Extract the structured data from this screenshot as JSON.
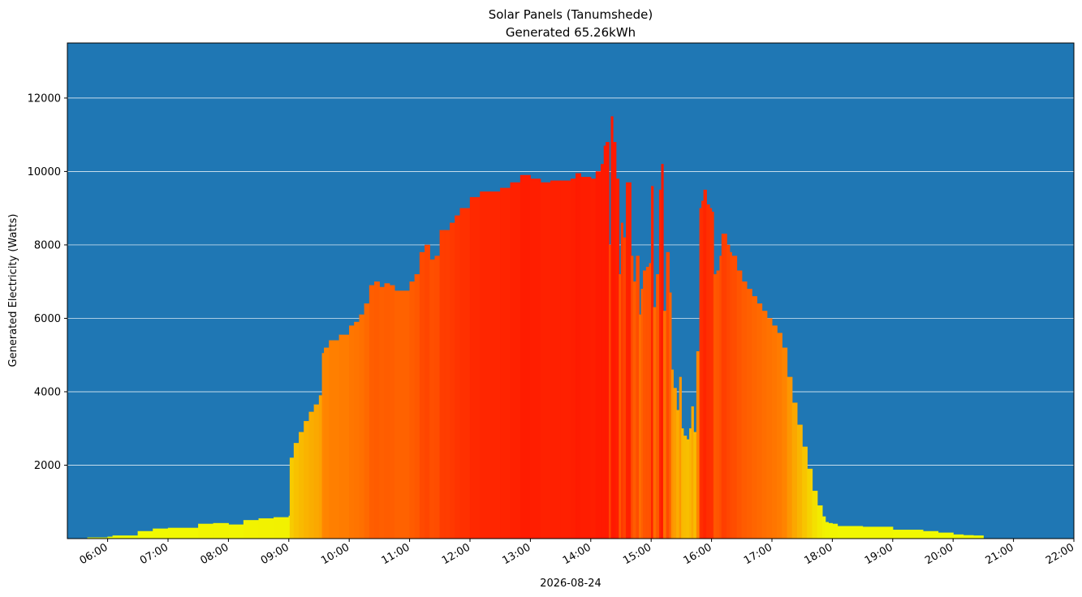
{
  "chart_data": {
    "type": "bar",
    "title": "Solar Panels (Tanumshede)",
    "subtitle": "Generated 65.26kWh",
    "xlabel": "2026-08-24",
    "ylabel": "Generated Electricity (Watts)",
    "ylim": [
      0,
      13500
    ],
    "xlim": [
      "05:20",
      "22:00"
    ],
    "yticks": [
      2000,
      4000,
      6000,
      8000,
      10000,
      12000
    ],
    "xticks": [
      "06:00",
      "07:00",
      "08:00",
      "09:00",
      "10:00",
      "11:00",
      "12:00",
      "13:00",
      "14:00",
      "15:00",
      "16:00",
      "17:00",
      "18:00",
      "19:00",
      "20:00",
      "21:00",
      "22:00"
    ],
    "grid": "horizontal",
    "colors": {
      "background": "#1f77b4",
      "low": "#f0ff00",
      "mid": "#ff8800",
      "high": "#ff1a00",
      "grid": "#ffffff"
    },
    "x": [
      "05:40",
      "06:00",
      "06:05",
      "06:30",
      "06:45",
      "07:00",
      "07:30",
      "07:45",
      "08:00",
      "08:15",
      "08:30",
      "08:45",
      "09:00",
      "09:01",
      "09:05",
      "09:10",
      "09:15",
      "09:20",
      "09:25",
      "09:30",
      "09:33",
      "09:35",
      "09:40",
      "09:50",
      "10:00",
      "10:05",
      "10:10",
      "10:15",
      "10:20",
      "10:25",
      "10:30",
      "10:35",
      "10:40",
      "10:45",
      "11:00",
      "11:05",
      "11:10",
      "11:15",
      "11:20",
      "11:25",
      "11:30",
      "11:35",
      "11:40",
      "11:45",
      "11:50",
      "12:00",
      "12:10",
      "12:20",
      "12:30",
      "12:40",
      "12:50",
      "13:00",
      "13:10",
      "13:20",
      "13:30",
      "13:40",
      "13:45",
      "13:50",
      "14:00",
      "14:05",
      "14:10",
      "14:13",
      "14:15",
      "14:18",
      "14:20",
      "14:22",
      "14:25",
      "14:28",
      "14:30",
      "14:32",
      "14:35",
      "14:38",
      "14:40",
      "14:42",
      "14:45",
      "14:48",
      "14:50",
      "14:52",
      "14:55",
      "14:58",
      "15:00",
      "15:02",
      "15:05",
      "15:08",
      "15:10",
      "15:12",
      "15:15",
      "15:18",
      "15:20",
      "15:22",
      "15:25",
      "15:28",
      "15:30",
      "15:32",
      "15:35",
      "15:38",
      "15:40",
      "15:42",
      "15:45",
      "15:48",
      "15:50",
      "15:52",
      "15:55",
      "15:58",
      "16:00",
      "16:02",
      "16:05",
      "16:08",
      "16:10",
      "16:12",
      "16:15",
      "16:18",
      "16:20",
      "16:25",
      "16:30",
      "16:35",
      "16:40",
      "16:45",
      "16:50",
      "16:55",
      "17:00",
      "17:05",
      "17:10",
      "17:15",
      "17:20",
      "17:25",
      "17:30",
      "17:35",
      "17:40",
      "17:45",
      "17:50",
      "17:53",
      "17:56",
      "18:00",
      "18:05",
      "18:30",
      "19:00",
      "19:30",
      "19:45",
      "20:00",
      "20:10",
      "20:20"
    ],
    "values": [
      30,
      50,
      80,
      200,
      270,
      290,
      400,
      420,
      380,
      500,
      550,
      580,
      620,
      2200,
      2600,
      2900,
      3200,
      3450,
      3650,
      3900,
      5050,
      5200,
      5400,
      5550,
      5800,
      5900,
      6100,
      6400,
      6900,
      7000,
      6850,
      6950,
      6900,
      6750,
      7000,
      7200,
      7800,
      8000,
      7600,
      7700,
      8400,
      8400,
      8600,
      8800,
      9000,
      9300,
      9450,
      9450,
      9550,
      9700,
      9900,
      9800,
      9700,
      9750,
      9750,
      9800,
      9950,
      9850,
      9800,
      10000,
      10200,
      10700,
      10800,
      8000,
      11500,
      10800,
      9800,
      7200,
      8600,
      8200,
      9700,
      9700,
      7700,
      7000,
      7700,
      6100,
      6800,
      7300,
      7400,
      7500,
      9600,
      6300,
      7200,
      9500,
      10200,
      6200,
      7800,
      6700,
      4600,
      4100,
      3500,
      4400,
      3000,
      2800,
      2700,
      3000,
      3600,
      2900,
      5100,
      9000,
      9200,
      9500,
      9100,
      9000,
      8900,
      7200,
      7300,
      7700,
      8300,
      8300,
      8000,
      7800,
      7700,
      7300,
      7000,
      6800,
      6600,
      6400,
      6200,
      6000,
      5800,
      5600,
      5200,
      4400,
      3700,
      3100,
      2500,
      1900,
      1300,
      900,
      600,
      450,
      420,
      400,
      340,
      320,
      240,
      200,
      160,
      110,
      90,
      80
    ]
  }
}
